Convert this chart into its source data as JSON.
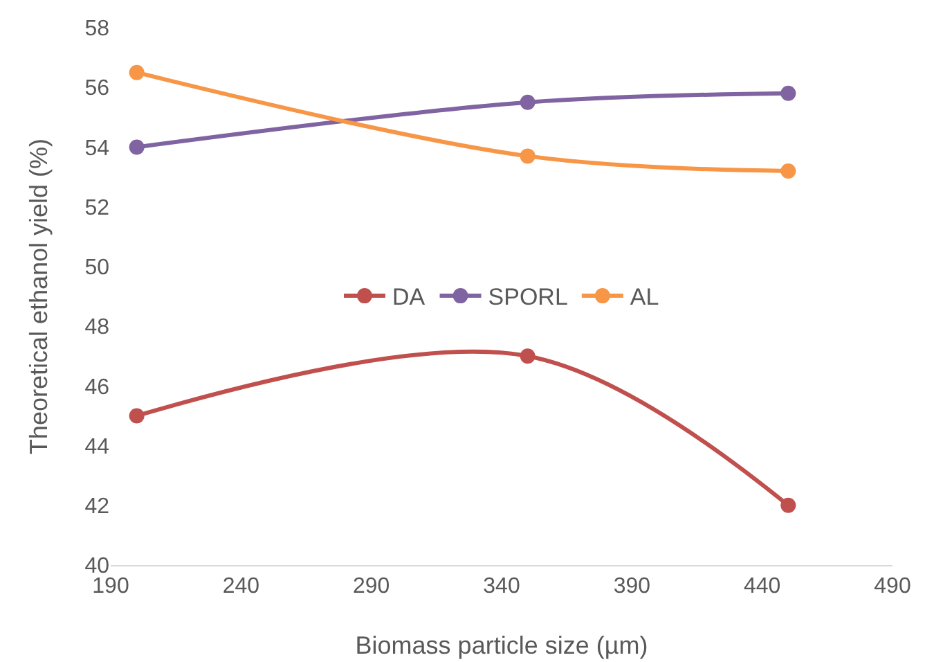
{
  "chart_data": {
    "type": "line",
    "xlabel": "Biomass particle size (µm)",
    "ylabel": "Theoretical ethanol yield (%)",
    "x": [
      200,
      350,
      450
    ],
    "series": [
      {
        "name": "DA",
        "color": "#c0504d",
        "values": [
          45,
          47,
          42
        ]
      },
      {
        "name": "SPORL",
        "color": "#8064a2",
        "values": [
          54,
          55.5,
          55.8
        ]
      },
      {
        "name": "AL",
        "color": "#f79646",
        "values": [
          56.5,
          53.7,
          53.2
        ]
      }
    ],
    "xlim": [
      190,
      490
    ],
    "xticks": [
      190,
      240,
      290,
      340,
      390,
      440,
      490
    ],
    "ylim": [
      40,
      58
    ],
    "yticks": [
      40,
      42,
      44,
      46,
      48,
      50,
      52,
      54,
      56,
      58
    ],
    "grid": false,
    "legend": "center",
    "marker": "circle",
    "line_style": "solid"
  }
}
